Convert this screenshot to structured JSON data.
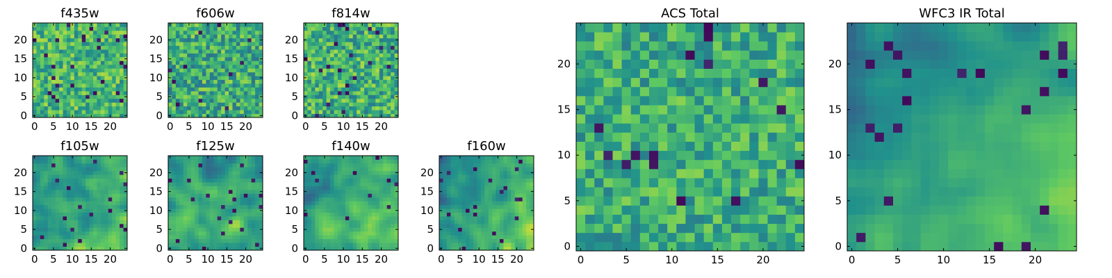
{
  "figure": {
    "description_colormap": "viridis",
    "colormap_stops": [
      "#440154",
      "#3b528b",
      "#21918c",
      "#5ec962",
      "#fde725"
    ]
  },
  "chart_data": [
    {
      "type": "heatmap",
      "title": "f435w",
      "grid_size": 25,
      "xlim": [
        -0.5,
        24.5
      ],
      "ylim": [
        -0.5,
        24.5
      ],
      "xticks": [
        0,
        5,
        10,
        15,
        20
      ],
      "yticks": [
        0,
        5,
        10,
        15,
        20
      ],
      "pattern": "noise",
      "seed": 11,
      "mean": 0.66,
      "spread": 0.22,
      "grid": false
    },
    {
      "type": "heatmap",
      "title": "f606w",
      "grid_size": 25,
      "xlim": [
        -0.5,
        24.5
      ],
      "ylim": [
        -0.5,
        24.5
      ],
      "xticks": [
        0,
        5,
        10,
        15,
        20
      ],
      "yticks": [
        0,
        5,
        10,
        15,
        20
      ],
      "pattern": "noise",
      "seed": 23,
      "mean": 0.62,
      "spread": 0.24,
      "grid": false
    },
    {
      "type": "heatmap",
      "title": "f814w",
      "grid_size": 25,
      "xlim": [
        -0.5,
        24.5
      ],
      "ylim": [
        -0.5,
        24.5
      ],
      "xticks": [
        0,
        5,
        10,
        15,
        20
      ],
      "yticks": [
        0,
        5,
        10,
        15,
        20
      ],
      "pattern": "noise",
      "seed": 37,
      "mean": 0.64,
      "spread": 0.24,
      "grid": false
    },
    {
      "type": "heatmap",
      "title": "f105w",
      "grid_size": 25,
      "xlim": [
        -0.5,
        24.5
      ],
      "ylim": [
        -0.5,
        24.5
      ],
      "xticks": [
        0,
        5,
        10,
        15,
        20
      ],
      "yticks": [
        0,
        5,
        10,
        15,
        20
      ],
      "pattern": "smooth",
      "seed": 41,
      "mean": 0.6,
      "spread": 0.2,
      "gradient": 0.18,
      "grid": false
    },
    {
      "type": "heatmap",
      "title": "f125w",
      "grid_size": 25,
      "xlim": [
        -0.5,
        24.5
      ],
      "ylim": [
        -0.5,
        24.5
      ],
      "xticks": [
        0,
        5,
        10,
        15,
        20
      ],
      "yticks": [
        0,
        5,
        10,
        15,
        20
      ],
      "pattern": "smooth",
      "seed": 53,
      "mean": 0.58,
      "spread": 0.22,
      "gradient": 0.2,
      "grid": false
    },
    {
      "type": "heatmap",
      "title": "f140w",
      "grid_size": 25,
      "xlim": [
        -0.5,
        24.5
      ],
      "ylim": [
        -0.5,
        24.5
      ],
      "xticks": [
        0,
        5,
        10,
        15,
        20
      ],
      "yticks": [
        0,
        5,
        10,
        15,
        20
      ],
      "pattern": "smooth",
      "seed": 67,
      "mean": 0.58,
      "spread": 0.2,
      "gradient": 0.28,
      "grid": false
    },
    {
      "type": "heatmap",
      "title": "f160w",
      "grid_size": 25,
      "xlim": [
        -0.5,
        24.5
      ],
      "ylim": [
        -0.5,
        24.5
      ],
      "xticks": [
        0,
        5,
        10,
        15,
        20
      ],
      "yticks": [
        0,
        5,
        10,
        15,
        20
      ],
      "pattern": "smooth",
      "seed": 79,
      "mean": 0.55,
      "spread": 0.18,
      "gradient": 0.38,
      "grid": false
    },
    {
      "type": "heatmap",
      "title": "ACS Total",
      "grid_size": 25,
      "xlim": [
        -0.5,
        24.5
      ],
      "ylim": [
        -0.5,
        24.5
      ],
      "xticks": [
        0,
        5,
        10,
        15,
        20
      ],
      "yticks": [
        0,
        5,
        10,
        15,
        20
      ],
      "pattern": "noise",
      "seed": 97,
      "mean": 0.62,
      "spread": 0.2,
      "grid": false
    },
    {
      "type": "heatmap",
      "title": "WFC3 IR Total",
      "grid_size": 25,
      "xlim": [
        -0.5,
        24.5
      ],
      "ylim": [
        -0.5,
        24.5
      ],
      "xticks": [
        0,
        5,
        10,
        15,
        20
      ],
      "yticks": [
        0,
        5,
        10,
        15,
        20
      ],
      "pattern": "smooth",
      "seed": 113,
      "mean": 0.55,
      "spread": 0.14,
      "gradient": 0.4,
      "grid": false
    }
  ]
}
